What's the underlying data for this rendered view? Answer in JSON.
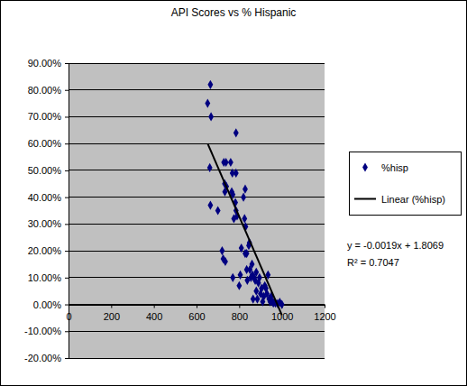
{
  "chart_data": {
    "type": "scatter",
    "title": "API Scores vs % Hispanic",
    "xlim": [
      0,
      1200
    ],
    "xticks": [
      0,
      200,
      400,
      600,
      800,
      1000,
      1200
    ],
    "ylim": [
      -0.2,
      0.9
    ],
    "yticks": [
      {
        "value": -0.2,
        "label": "-20.00%"
      },
      {
        "value": -0.1,
        "label": "-10.00%"
      },
      {
        "value": 0,
        "label": "0.00%"
      },
      {
        "value": 0.1,
        "label": "10.00%"
      },
      {
        "value": 0.2,
        "label": "20.00%"
      },
      {
        "value": 0.3,
        "label": "30.00%"
      },
      {
        "value": 0.4,
        "label": "40.00%"
      },
      {
        "value": 0.5,
        "label": "50.00%"
      },
      {
        "value": 0.6,
        "label": "60.00%"
      },
      {
        "value": 0.7,
        "label": "70.00%"
      },
      {
        "value": 0.8,
        "label": "80.00%"
      },
      {
        "value": 0.9,
        "label": "90.00%"
      }
    ],
    "grid": true,
    "legend": "right",
    "annotations": [
      "y = -0.0019x + 1.8069",
      "R² = 0.7047"
    ],
    "series": [
      {
        "name": "%hisp",
        "type": "scatter",
        "color": "#000080",
        "marker": "diamond",
        "x": [
          652,
          665,
          668,
          662,
          665,
          700,
          720,
          725,
          735,
          732,
          728,
          738,
          740,
          733,
          760,
          768,
          765,
          770,
          775,
          770,
          785,
          785,
          782,
          785,
          790,
          800,
          805,
          810,
          820,
          825,
          828,
          830,
          828,
          835,
          835,
          838,
          845,
          848,
          850,
          855,
          860,
          862,
          865,
          870,
          875,
          880,
          880,
          885,
          890,
          895,
          900,
          905,
          910,
          915,
          920,
          925,
          930,
          935,
          940,
          945,
          950,
          955,
          960,
          965,
          970,
          980,
          990,
          1000
        ],
        "values": [
          0.75,
          0.82,
          0.7,
          0.51,
          0.37,
          0.35,
          0.2,
          0.17,
          0.16,
          0.45,
          0.53,
          0.53,
          0.44,
          0.42,
          0.53,
          0.49,
          0.42,
          0.41,
          0.32,
          0.1,
          0.64,
          0.49,
          0.38,
          0.35,
          0.33,
          0.07,
          0.11,
          0.21,
          0.4,
          0.32,
          0.43,
          0.29,
          0.19,
          0.19,
          0.13,
          0.09,
          0.22,
          0.23,
          0.13,
          0.1,
          0.15,
          0.11,
          0.02,
          0.1,
          0.09,
          0.05,
          0.12,
          0.02,
          0.08,
          0.1,
          0.04,
          0.06,
          0.01,
          0.03,
          0.07,
          0.06,
          0.04,
          0.11,
          0.02,
          0.01,
          0.03,
          0.01,
          0.005,
          0.01,
          0.005,
          0.003,
          0.008,
          0
        ]
      },
      {
        "name": "Linear (%hisp)",
        "type": "line",
        "color": "#000000",
        "line_style": "solid",
        "x": [
          652,
          1000
        ],
        "values": [
          0.6,
          -0.04
        ]
      }
    ]
  }
}
